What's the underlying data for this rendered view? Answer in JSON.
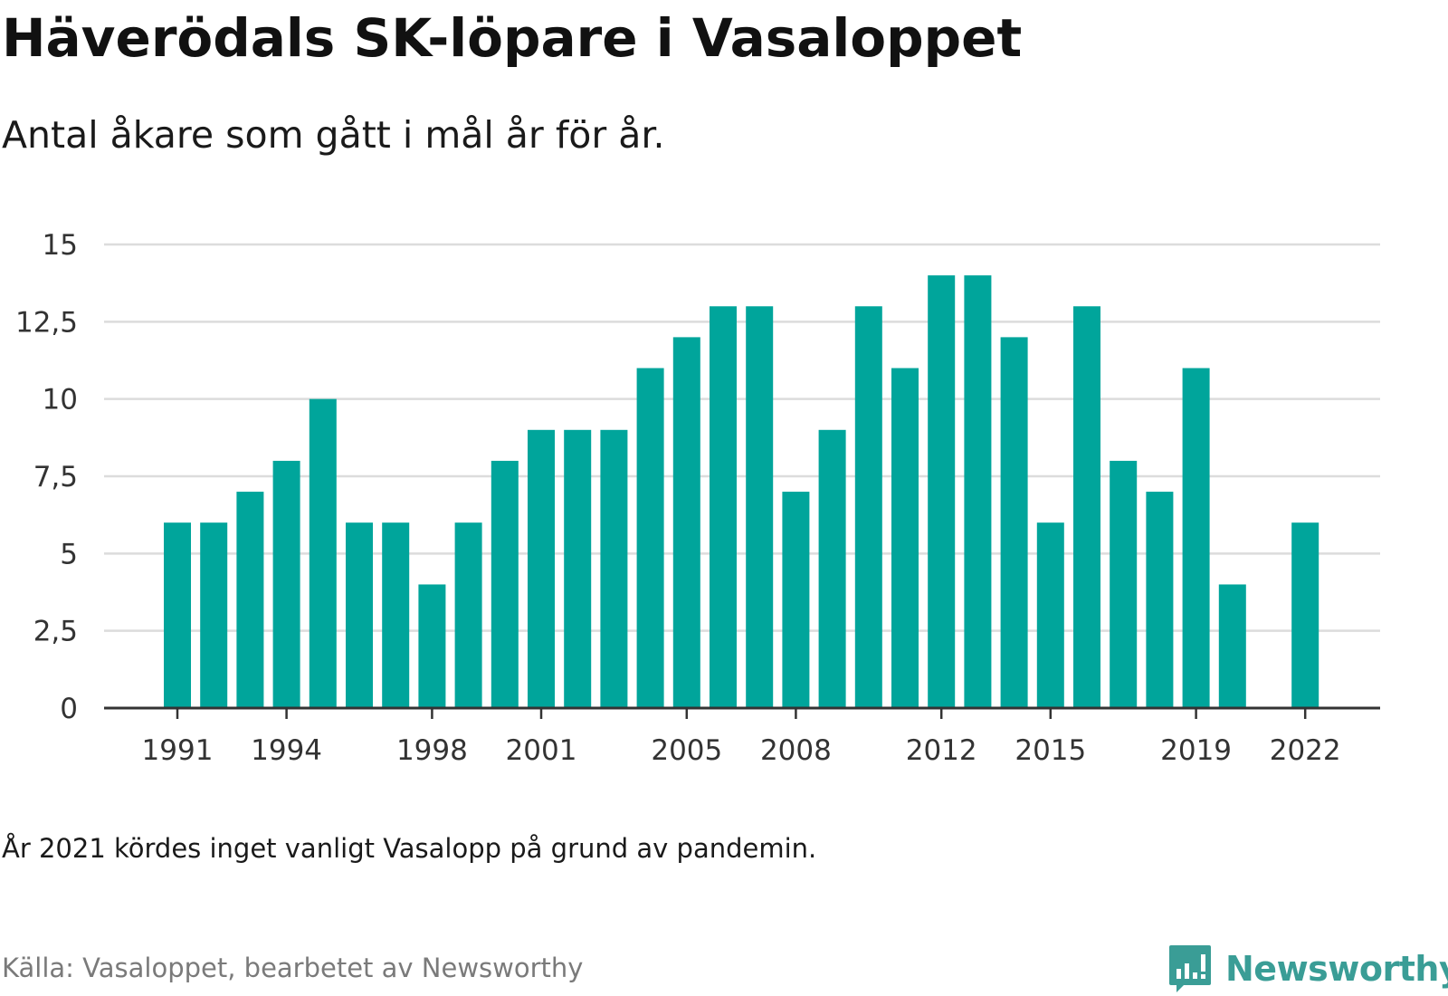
{
  "header": {
    "title": "Häverödals SK-löpare i Vasaloppet",
    "subtitle": "Antal åkare som gått i mål år för år."
  },
  "footer": {
    "note": "År 2021 kördes inget vanligt Vasalopp på grund av pandemin.",
    "source": "Källa: Vasaloppet, bearbetet av Newsworthy",
    "brand": "Newsworthy",
    "brand_icon": "bar-chart-speech-bubble-icon"
  },
  "colors": {
    "bar": "#00a59b",
    "grid": "#dcdcdc",
    "axis": "#333333",
    "brand": "#3a9d96"
  },
  "chart_data": {
    "type": "bar",
    "categories": [
      "1991",
      "1992",
      "1993",
      "1994",
      "1995",
      "1996",
      "1997",
      "1998",
      "1999",
      "2000",
      "2001",
      "2002",
      "2003",
      "2004",
      "2005",
      "2006",
      "2007",
      "2008",
      "2009",
      "2010",
      "2011",
      "2012",
      "2013",
      "2014",
      "2015",
      "2016",
      "2017",
      "2018",
      "2019",
      "2020",
      "2021",
      "2022"
    ],
    "values": [
      6,
      6,
      7,
      8,
      10,
      6,
      6,
      4,
      6,
      8,
      9,
      9,
      9,
      11,
      12,
      13,
      13,
      7,
      9,
      13,
      11,
      14,
      14,
      12,
      6,
      13,
      8,
      7,
      11,
      4,
      null,
      6
    ],
    "x_tick_labels": [
      "1991",
      "1994",
      "1998",
      "2001",
      "2005",
      "2008",
      "2012",
      "2015",
      "2019",
      "2022"
    ],
    "y_ticks": [
      0,
      2.5,
      5,
      7.5,
      10,
      12.5,
      15
    ],
    "y_tick_labels": [
      "0",
      "2,5",
      "5",
      "7,5",
      "10",
      "12,5",
      "15"
    ],
    "ylim": [
      0,
      15
    ],
    "grid": true,
    "legend": "none"
  }
}
